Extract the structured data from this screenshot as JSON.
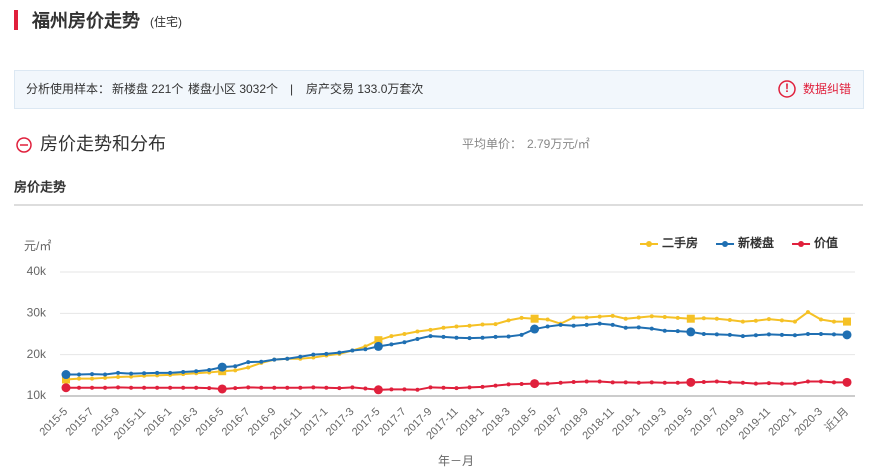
{
  "header": {
    "title": "福州房价走势",
    "subtitle": "(住宅)"
  },
  "info_bar": {
    "label": "分析使用样本：",
    "new_projects": "新楼盘 221个",
    "communities": "楼盘小区 3032个",
    "separator": "|",
    "transactions": "房产交易 133.0万套次",
    "report": "数据纠错"
  },
  "section": {
    "title": "房价走势和分布",
    "avg_label": "平均单价：",
    "avg_value": "2.79万元/㎡",
    "subtitle": "房价走势"
  },
  "chart_data": {
    "type": "line",
    "y_unit": "元/㎡",
    "x_label": "年－月",
    "categories": [
      "2015-5",
      null,
      "2015-7",
      null,
      "2015-9",
      null,
      "2015-11",
      null,
      "2016-1",
      null,
      "2016-3",
      null,
      "2016-5",
      null,
      "2016-7",
      null,
      "2016-9",
      null,
      "2016-11",
      null,
      "2017-1",
      null,
      "2017-3",
      null,
      "2017-5",
      null,
      "2017-7",
      null,
      "2017-9",
      null,
      "2017-11",
      null,
      "2018-1",
      null,
      "2018-3",
      null,
      "2018-5",
      null,
      "2018-7",
      null,
      "2018-9",
      null,
      "2018-11",
      null,
      "2019-1",
      null,
      "2019-3",
      null,
      "2019-5",
      null,
      "2019-7",
      null,
      "2019-9",
      null,
      "2019-11",
      null,
      "2020-1",
      null,
      "2020-3",
      null,
      "近1月"
    ],
    "series": [
      {
        "name": "二手房",
        "color": "#f5c125",
        "values": [
          14000,
          14200,
          14200,
          14400,
          14600,
          14700,
          14900,
          15000,
          15100,
          15300,
          15500,
          15700,
          16000,
          16200,
          16900,
          18000,
          18800,
          19000,
          19000,
          19300,
          19800,
          20200,
          21000,
          22000,
          23500,
          24500,
          25000,
          25600,
          26000,
          26500,
          26800,
          27000,
          27300,
          27400,
          28300,
          28900,
          28700,
          28500,
          27500,
          29000,
          29000,
          29200,
          29400,
          28700,
          29000,
          29300,
          29100,
          28900,
          28700,
          28800,
          28700,
          28400,
          28000,
          28200,
          28600,
          28300,
          28000,
          30300,
          28500,
          28000,
          28000
        ]
      },
      {
        "name": "新楼盘",
        "color": "#1f6fb2",
        "values": [
          15200,
          15200,
          15300,
          15200,
          15600,
          15400,
          15500,
          15600,
          15600,
          15800,
          16000,
          16300,
          17000,
          17200,
          18200,
          18300,
          18800,
          19000,
          19500,
          20000,
          20200,
          20500,
          21000,
          21300,
          22000,
          22500,
          23000,
          23800,
          24500,
          24300,
          24100,
          24000,
          24100,
          24300,
          24400,
          24800,
          26200,
          26800,
          27200,
          27000,
          27200,
          27500,
          27200,
          26500,
          26600,
          26300,
          25800,
          25700,
          25500,
          25000,
          24900,
          24800,
          24500,
          24700,
          24900,
          24800,
          24700,
          25000,
          25000,
          24900,
          24800
        ]
      },
      {
        "name": "价值",
        "color": "#e0203c",
        "values": [
          12000,
          12000,
          12000,
          12000,
          12100,
          12000,
          12000,
          12000,
          12000,
          12000,
          12000,
          11900,
          11700,
          11900,
          12100,
          12000,
          12000,
          12000,
          12000,
          12100,
          12000,
          11900,
          12100,
          11800,
          11500,
          11600,
          11600,
          11500,
          12100,
          12000,
          11900,
          12100,
          12200,
          12500,
          12800,
          12900,
          13000,
          13000,
          13200,
          13400,
          13500,
          13500,
          13300,
          13300,
          13200,
          13300,
          13200,
          13200,
          13300,
          13400,
          13500,
          13300,
          13200,
          13000,
          13100,
          13000,
          13000,
          13500,
          13500,
          13300,
          13300
        ]
      }
    ],
    "ylim": [
      10000,
      40000
    ],
    "yticks": [
      {
        "value": 10000,
        "label": "10k"
      },
      {
        "value": 20000,
        "label": "20k"
      },
      {
        "value": 30000,
        "label": "30k"
      },
      {
        "value": 40000,
        "label": "40k"
      }
    ],
    "grid": true,
    "legend": "top-right"
  }
}
